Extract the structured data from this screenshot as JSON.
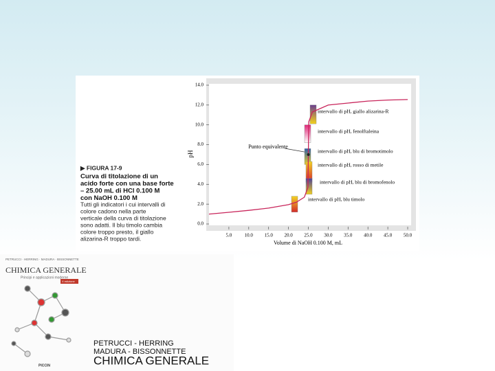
{
  "chart_data": {
    "type": "line",
    "x_label": "Volume di NaOH 0.100 M, mL",
    "y_label": "pH",
    "x": [
      0,
      5,
      10,
      15,
      20,
      22,
      24,
      24.9,
      25,
      25.1,
      26,
      30,
      35,
      40,
      45,
      50
    ],
    "series": [
      {
        "color": "#c8245a",
        "values": [
          1.0,
          1.18,
          1.37,
          1.6,
          1.95,
          2.2,
          2.7,
          3.7,
          7.0,
          10.3,
          11.3,
          12.0,
          12.2,
          12.4,
          12.5,
          12.55
        ]
      }
    ],
    "xlim": [
      0,
      50
    ],
    "ylim": [
      0,
      14
    ],
    "xticks": [
      {
        "value": 5,
        "label": "5.0"
      },
      {
        "value": 10,
        "label": "10.0"
      },
      {
        "value": 15,
        "label": "15.0"
      },
      {
        "value": 20,
        "label": "20.0"
      },
      {
        "value": 25,
        "label": "25.0"
      },
      {
        "value": 30,
        "label": "30.0"
      },
      {
        "value": 35,
        "label": "35.0"
      },
      {
        "value": 40,
        "label": "40.0"
      },
      {
        "value": 45,
        "label": "45.0"
      },
      {
        "value": 50,
        "label": "50.0"
      }
    ],
    "yticks": [
      {
        "value": 0,
        "label": "0.0"
      },
      {
        "value": 2,
        "label": "2.0"
      },
      {
        "value": 4,
        "label": "4.0"
      },
      {
        "value": 6,
        "label": "6.0"
      },
      {
        "value": 8,
        "label": "8.0"
      },
      {
        "value": 10,
        "label": "10.0"
      },
      {
        "value": 12,
        "label": "12.0"
      },
      {
        "value": 14,
        "label": "14.0"
      }
    ],
    "equivalence_label": "Punto equivalente",
    "indicators": [
      {
        "label": "intervallo di pH, giallo alizarina-R",
        "range": [
          10.1,
          12.0
        ],
        "colors": [
          "#f3d21c",
          "#6b3f8f"
        ]
      },
      {
        "label": "intervallo di pH, fenolftaleina",
        "range": [
          8.2,
          10.0
        ],
        "colors": [
          "#ffffff",
          "#e0287a"
        ]
      },
      {
        "label": "intervallo di pH, blu di bromotimolo",
        "range": [
          6.0,
          7.6
        ],
        "colors": [
          "#e6d42a",
          "#2f5fa8"
        ]
      },
      {
        "label": "intervallo di pH, rosso di metile",
        "range": [
          4.2,
          6.3
        ],
        "colors": [
          "#d8232a",
          "#f2d424"
        ]
      },
      {
        "label": "intervallo di pH, blu di bromofenolo",
        "range": [
          3.0,
          4.6
        ],
        "colors": [
          "#f0d020",
          "#4a3f9a"
        ]
      },
      {
        "label": "intervallo di pH, blu timolo",
        "range": [
          1.2,
          2.8
        ],
        "colors": [
          "#d42a2a",
          "#f2d424"
        ]
      }
    ]
  },
  "caption": {
    "figure": "▶ FIGURA 17-9",
    "title": [
      "Curva di titolazione di un",
      "acido forte con una base forte",
      "– 25.00 mL di HCl 0.100 M",
      "con NaOH 0.100 M"
    ],
    "body": [
      "Tutti gli indicatori i cui intervalli di",
      "colore cadono nella parte",
      "verticale della curva di titolazione",
      "sono adatti. Il blu timolo cambia",
      "colore troppo presto, il giallo",
      "alizarina-R troppo tardi."
    ]
  },
  "cover": {
    "authors": "PETRUCCI · HERRING · MADURA · BISSONNETTE",
    "title": "CHIMICA GENERALE",
    "subtitle": "Principi e applicazioni moderne",
    "edition": "X edizione",
    "publisher": "PICCIN"
  },
  "book": {
    "authors": [
      "PETRUCCI - HERRING",
      "MADURA - BISSONNETTE"
    ],
    "title": "CHIMICA GENERALE"
  }
}
